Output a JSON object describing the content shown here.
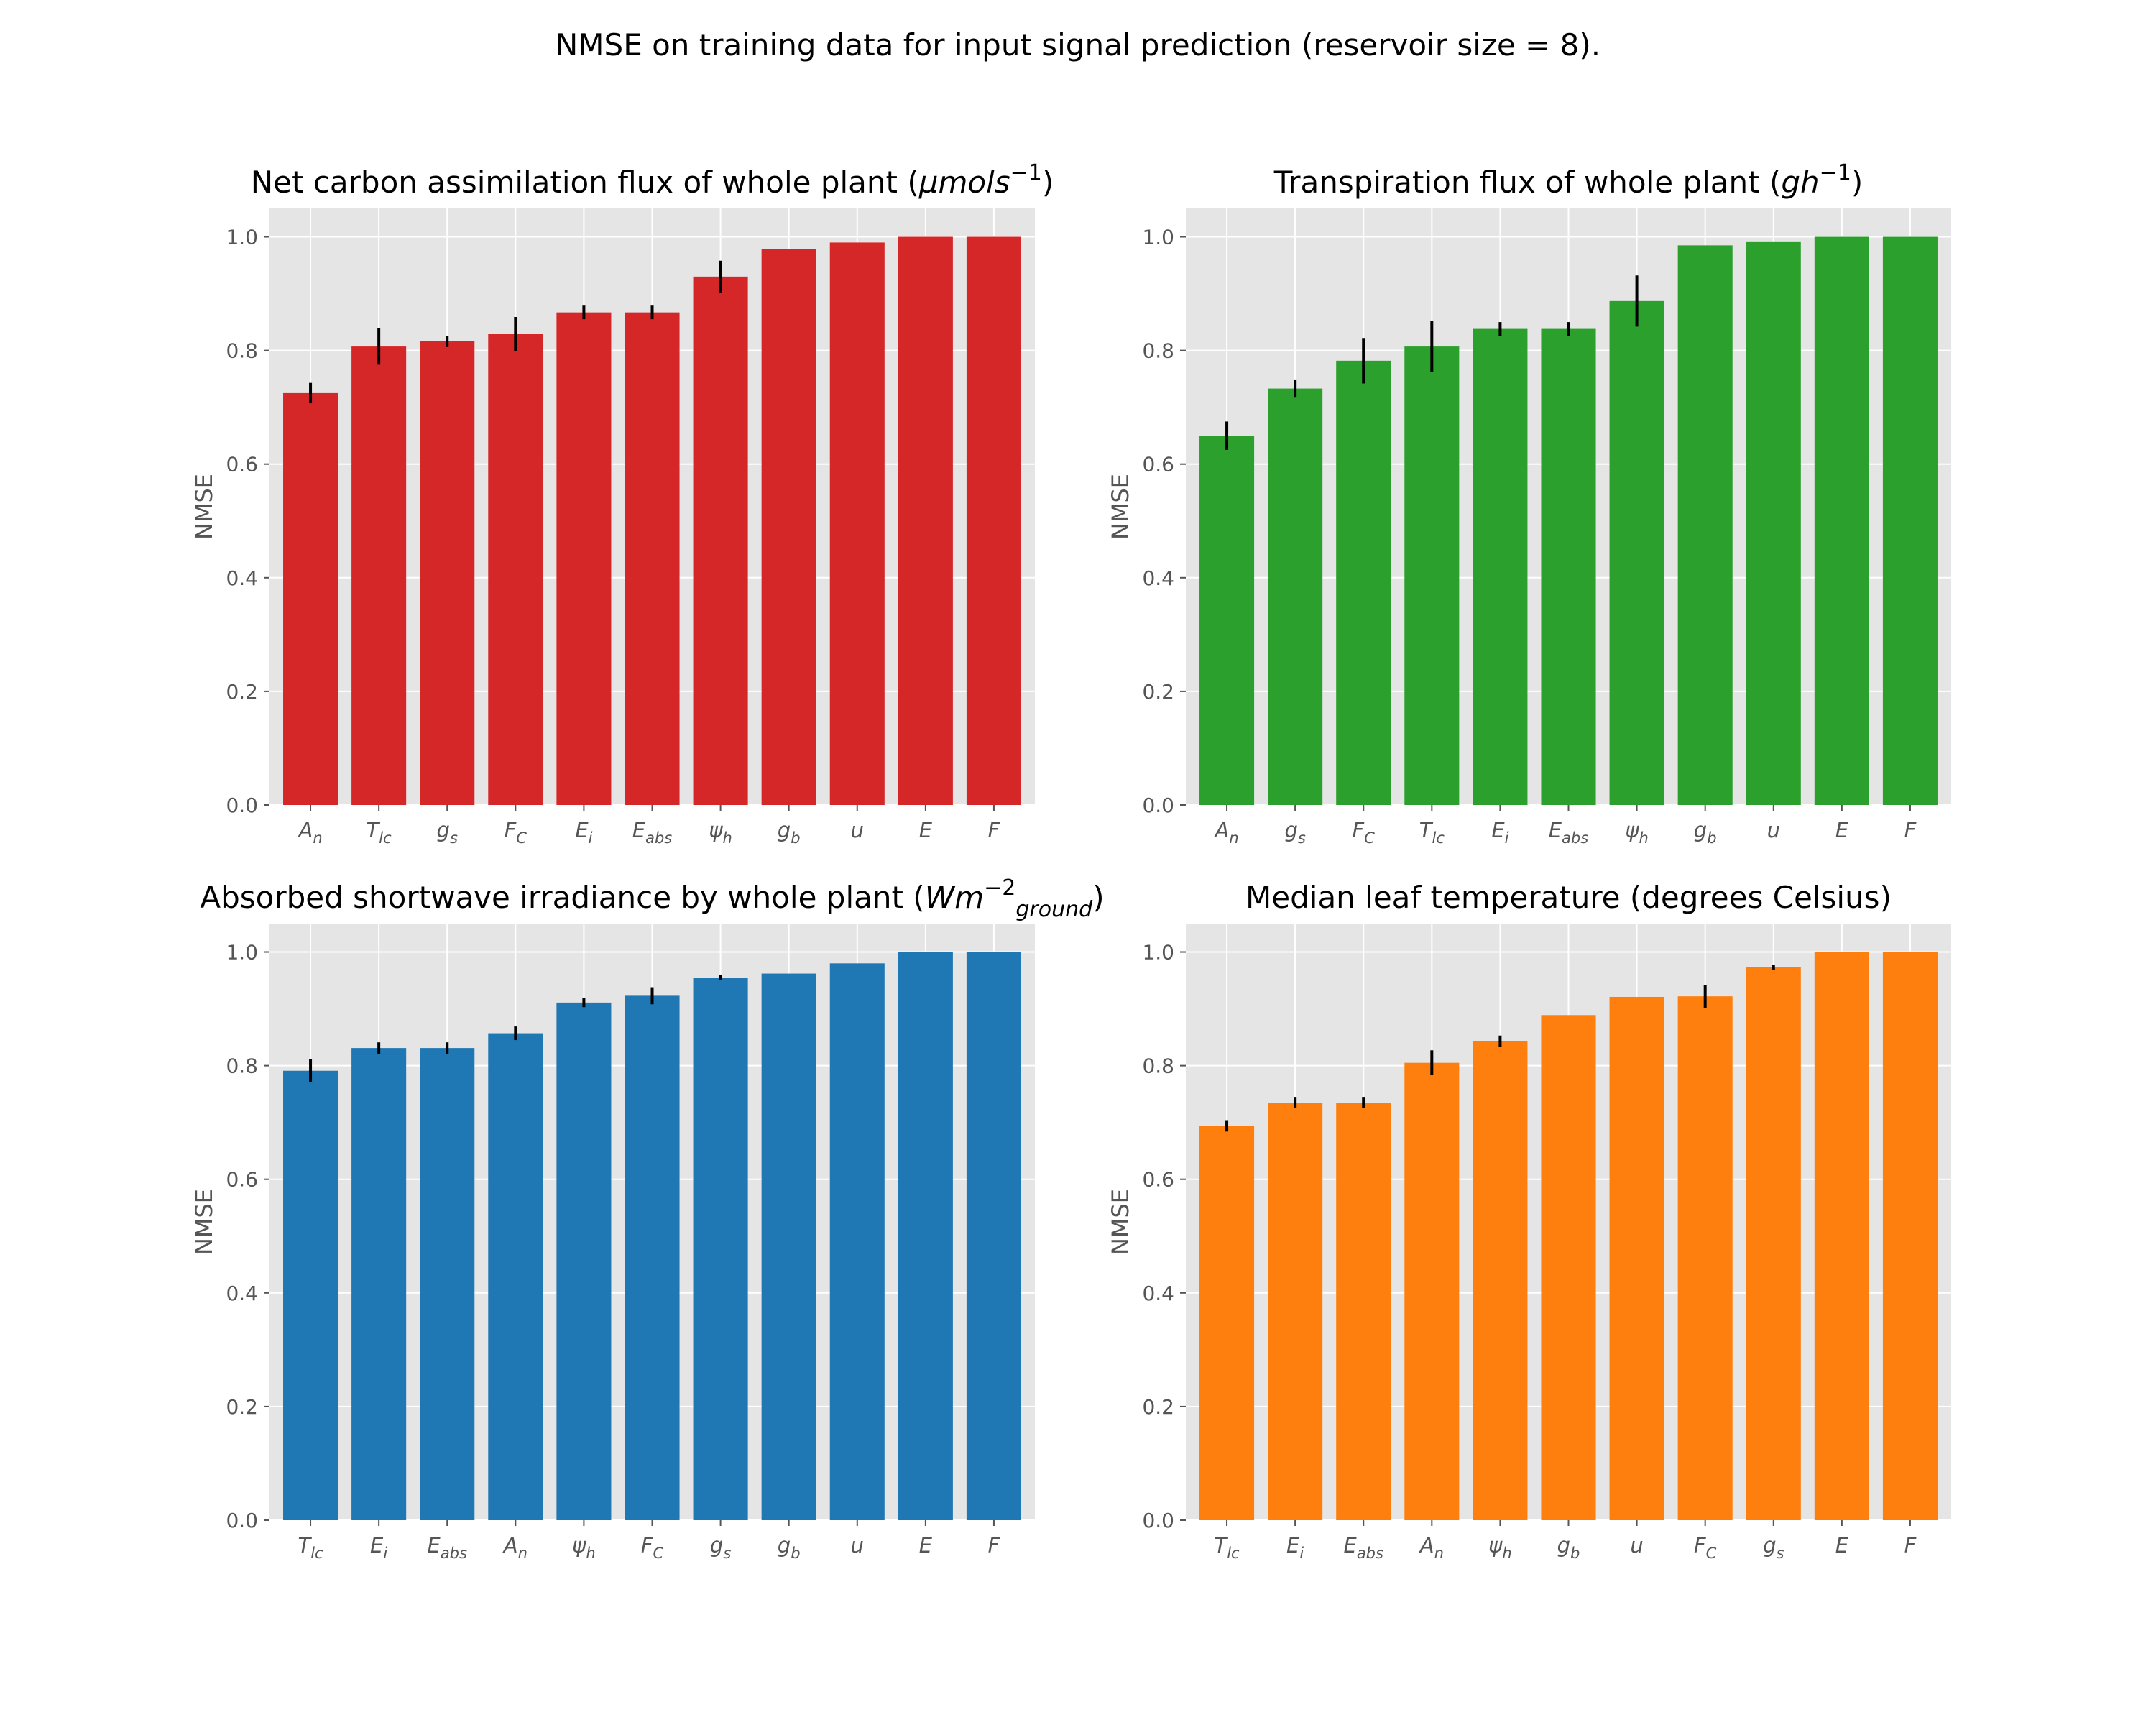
{
  "figure_title": "NMSE on training data for input signal prediction (reservoir size = 8).",
  "chart_data": [
    {
      "type": "bar",
      "title": "Net carbon assimilation flux of whole plant (μmols⁻¹)",
      "title_parts": [
        {
          "t": "Net carbon assimilation flux of whole plant (",
          "s": "n"
        },
        {
          "t": "μmols",
          "s": "i"
        },
        {
          "t": "−1",
          "s": "sup"
        },
        {
          "t": ")",
          "s": "n"
        }
      ],
      "ylabel": "NMSE",
      "ylim": [
        0,
        1.05
      ],
      "yticks": [
        "0.0",
        "0.2",
        "0.4",
        "0.6",
        "0.8",
        "1.0"
      ],
      "grid": true,
      "color": "#d62728",
      "categories": [
        [
          "A",
          "n"
        ],
        [
          "T",
          "lc"
        ],
        [
          "g",
          "s"
        ],
        [
          "F",
          "C"
        ],
        [
          "E",
          "i"
        ],
        [
          "E",
          "abs"
        ],
        [
          "ψ",
          "h"
        ],
        [
          "g",
          "b"
        ],
        [
          "u",
          ""
        ],
        [
          "E",
          ""
        ],
        [
          "F",
          ""
        ]
      ],
      "values": [
        0.725,
        0.807,
        0.816,
        0.829,
        0.867,
        0.867,
        0.93,
        0.978,
        0.99,
        1.0,
        1.0
      ],
      "errors": [
        0.018,
        0.032,
        0.01,
        0.03,
        0.012,
        0.012,
        0.028,
        0.0,
        0.0,
        0.0,
        0.0
      ]
    },
    {
      "type": "bar",
      "title": "Transpiration flux of whole plant (gh⁻¹)",
      "title_parts": [
        {
          "t": "Transpiration flux of whole plant (",
          "s": "n"
        },
        {
          "t": "gh",
          "s": "i"
        },
        {
          "t": "−1",
          "s": "sup"
        },
        {
          "t": ")",
          "s": "n"
        }
      ],
      "ylabel": "NMSE",
      "ylim": [
        0,
        1.05
      ],
      "yticks": [
        "0.0",
        "0.2",
        "0.4",
        "0.6",
        "0.8",
        "1.0"
      ],
      "grid": true,
      "color": "#2ca02c",
      "categories": [
        [
          "A",
          "n"
        ],
        [
          "g",
          "s"
        ],
        [
          "F",
          "C"
        ],
        [
          "T",
          "lc"
        ],
        [
          "E",
          "i"
        ],
        [
          "E",
          "abs"
        ],
        [
          "ψ",
          "h"
        ],
        [
          "g",
          "b"
        ],
        [
          "u",
          ""
        ],
        [
          "E",
          ""
        ],
        [
          "F",
          ""
        ]
      ],
      "values": [
        0.65,
        0.733,
        0.782,
        0.807,
        0.838,
        0.838,
        0.887,
        0.985,
        0.992,
        1.0,
        1.0
      ],
      "errors": [
        0.025,
        0.016,
        0.04,
        0.045,
        0.012,
        0.012,
        0.045,
        0.0,
        0.0,
        0.0,
        0.0
      ]
    },
    {
      "type": "bar",
      "title": "Absorbed shortwave irradiance by whole plant (Wm⁻²ground)",
      "title_parts": [
        {
          "t": "Absorbed shortwave irradiance by whole plant (",
          "s": "n"
        },
        {
          "t": "Wm",
          "s": "i"
        },
        {
          "t": "−2",
          "s": "sup"
        },
        {
          "t": "ground",
          "s": "sub"
        },
        {
          "t": ")",
          "s": "n"
        }
      ],
      "ylabel": "NMSE",
      "ylim": [
        0,
        1.05
      ],
      "yticks": [
        "0.0",
        "0.2",
        "0.4",
        "0.6",
        "0.8",
        "1.0"
      ],
      "grid": true,
      "color": "#1f77b4",
      "categories": [
        [
          "T",
          "lc"
        ],
        [
          "E",
          "i"
        ],
        [
          "E",
          "abs"
        ],
        [
          "A",
          "n"
        ],
        [
          "ψ",
          "h"
        ],
        [
          "F",
          "C"
        ],
        [
          "g",
          "s"
        ],
        [
          "g",
          "b"
        ],
        [
          "u",
          ""
        ],
        [
          "E",
          ""
        ],
        [
          "F",
          ""
        ]
      ],
      "values": [
        0.791,
        0.831,
        0.831,
        0.857,
        0.911,
        0.923,
        0.955,
        0.962,
        0.98,
        1.0,
        1.0
      ],
      "errors": [
        0.02,
        0.01,
        0.01,
        0.012,
        0.008,
        0.015,
        0.004,
        0.0,
        0.0,
        0.0,
        0.0
      ]
    },
    {
      "type": "bar",
      "title": "Median leaf temperature (degrees Celsius)",
      "title_parts": [
        {
          "t": "Median leaf temperature (degrees Celsius)",
          "s": "n"
        }
      ],
      "ylabel": "NMSE",
      "ylim": [
        0,
        1.05
      ],
      "yticks": [
        "0.0",
        "0.2",
        "0.4",
        "0.6",
        "0.8",
        "1.0"
      ],
      "grid": true,
      "color": "#ff7f0e",
      "categories": [
        [
          "T",
          "lc"
        ],
        [
          "E",
          "i"
        ],
        [
          "E",
          "abs"
        ],
        [
          "A",
          "n"
        ],
        [
          "ψ",
          "h"
        ],
        [
          "g",
          "b"
        ],
        [
          "u",
          ""
        ],
        [
          "F",
          "C"
        ],
        [
          "g",
          "s"
        ],
        [
          "E",
          ""
        ],
        [
          "F",
          ""
        ]
      ],
      "values": [
        0.694,
        0.735,
        0.735,
        0.805,
        0.843,
        0.889,
        0.921,
        0.922,
        0.973,
        1.0,
        1.0
      ],
      "errors": [
        0.01,
        0.01,
        0.01,
        0.022,
        0.01,
        0.0,
        0.0,
        0.02,
        0.004,
        0.0,
        0.0
      ]
    }
  ]
}
